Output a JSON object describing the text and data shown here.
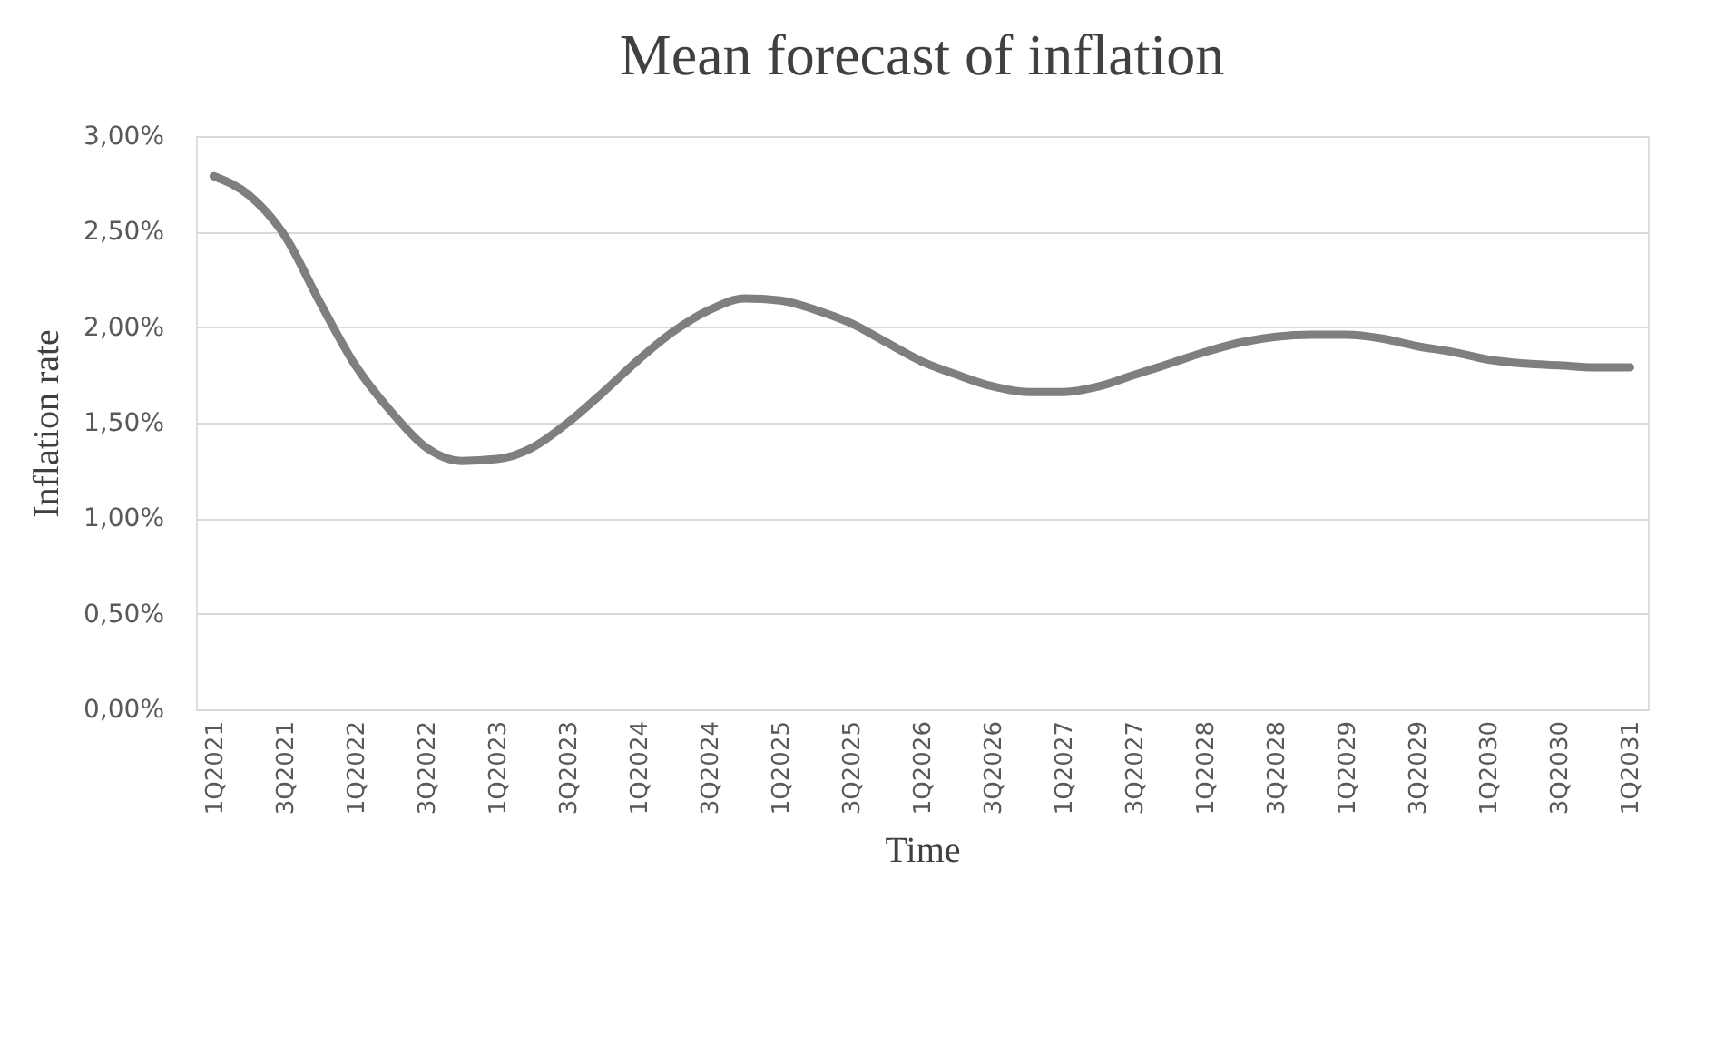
{
  "chart_data": {
    "type": "line",
    "title": "Mean forecast of inflation",
    "xlabel": "Time",
    "ylabel": "Inflation rate",
    "categories": [
      "1Q2021",
      null,
      "3Q2021",
      null,
      "1Q2022",
      null,
      "3Q2022",
      null,
      "1Q2023",
      null,
      "3Q2023",
      null,
      "1Q2024",
      null,
      "3Q2024",
      null,
      "1Q2025",
      null,
      "3Q2025",
      null,
      "1Q2026",
      null,
      "3Q2026",
      null,
      "1Q2027",
      null,
      "3Q2027",
      null,
      "1Q2028",
      null,
      "3Q2028",
      null,
      "1Q2029",
      null,
      "3Q2029",
      null,
      "1Q2030",
      null,
      "3Q2030",
      null,
      "1Q2031"
    ],
    "series": [
      {
        "color": "#7f7f7f",
        "values": [
          2.79,
          2.69,
          2.48,
          2.13,
          1.8,
          1.56,
          1.37,
          1.3,
          1.31,
          1.37,
          1.5,
          1.66,
          1.83,
          1.98,
          2.09,
          2.15,
          2.14,
          2.09,
          2.02,
          1.92,
          1.82,
          1.75,
          1.69,
          1.66,
          1.66,
          1.69,
          1.75,
          1.81,
          1.87,
          1.92,
          1.95,
          1.96,
          1.96,
          1.94,
          1.9,
          1.87,
          1.83,
          1.81,
          1.8,
          1.79,
          1.79
        ]
      }
    ],
    "ylim": [
      0,
      3
    ],
    "yticks": [
      {
        "value": 0,
        "label": "0,00%"
      },
      {
        "value": 0.5,
        "label": "0,50%"
      },
      {
        "value": 1,
        "label": "1,00%"
      },
      {
        "value": 1.5,
        "label": "1,50%"
      },
      {
        "value": 2,
        "label": "2,00%"
      },
      {
        "value": 2.5,
        "label": "2,50%"
      },
      {
        "value": 3,
        "label": "3,00%"
      }
    ],
    "grid": "y",
    "marker": "none",
    "line_style": "solid"
  }
}
